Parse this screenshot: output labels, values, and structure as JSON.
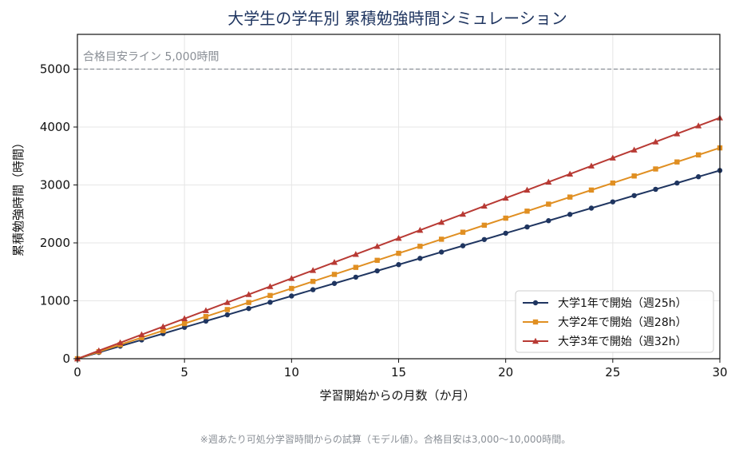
{
  "chart_data": {
    "type": "line",
    "title": "大学生の学年別 累積勉強時間シミュレーション",
    "xlabel": "学習開始からの月数（か月）",
    "ylabel": "累積勉強時間（時間）",
    "xlim": [
      0,
      30
    ],
    "ylim": [
      0,
      5600
    ],
    "x_ticks": [
      0,
      5,
      10,
      15,
      20,
      25,
      30
    ],
    "y_ticks": [
      0,
      1000,
      2000,
      3000,
      4000,
      5000
    ],
    "grid": true,
    "legend_position": "bottom-right",
    "reference_line": {
      "y": 5000,
      "label": "合格目安ライン 5,000時間",
      "color": "#8a8f96"
    },
    "series": [
      {
        "name": "大学1年で開始（週25h）",
        "marker": "circle",
        "color": "#1f3560",
        "monthly_increment": 108.3,
        "x": [
          0,
          1,
          2,
          3,
          4,
          5,
          6,
          7,
          8,
          9,
          10,
          11,
          12,
          13,
          14,
          15,
          16,
          17,
          18,
          19,
          20,
          21,
          22,
          23,
          24,
          25,
          26,
          27,
          28,
          29,
          30
        ],
        "values": [
          0,
          108,
          217,
          325,
          433,
          542,
          650,
          758,
          867,
          975,
          1083,
          1192,
          1300,
          1408,
          1517,
          1625,
          1733,
          1842,
          1950,
          2058,
          2167,
          2275,
          2383,
          2492,
          2600,
          2708,
          2817,
          2925,
          3033,
          3142,
          3250
        ]
      },
      {
        "name": "大学2年で開始（週28h）",
        "marker": "square",
        "color": "#e08f22",
        "monthly_increment": 121.3,
        "x": [
          0,
          1,
          2,
          3,
          4,
          5,
          6,
          7,
          8,
          9,
          10,
          11,
          12,
          13,
          14,
          15,
          16,
          17,
          18,
          19,
          20,
          21,
          22,
          23,
          24,
          25,
          26,
          27,
          28,
          29,
          30
        ],
        "values": [
          0,
          121,
          243,
          364,
          485,
          607,
          728,
          849,
          971,
          1092,
          1213,
          1335,
          1456,
          1577,
          1699,
          1820,
          1941,
          2063,
          2184,
          2305,
          2427,
          2548,
          2669,
          2791,
          2912,
          3033,
          3155,
          3276,
          3397,
          3519,
          3640
        ]
      },
      {
        "name": "大学3年で開始（週32h）",
        "marker": "triangle",
        "color": "#b83a34",
        "monthly_increment": 138.7,
        "x": [
          0,
          1,
          2,
          3,
          4,
          5,
          6,
          7,
          8,
          9,
          10,
          11,
          12,
          13,
          14,
          15,
          16,
          17,
          18,
          19,
          20,
          21,
          22,
          23,
          24,
          25,
          26,
          27,
          28,
          29,
          30
        ],
        "values": [
          0,
          139,
          277,
          416,
          555,
          693,
          832,
          971,
          1109,
          1248,
          1387,
          1525,
          1664,
          1803,
          1941,
          2080,
          2219,
          2357,
          2496,
          2635,
          2773,
          2912,
          3051,
          3189,
          3328,
          3467,
          3605,
          3744,
          3883,
          4021,
          4160
        ]
      }
    ],
    "footnote": "※週あたり可処分学習時間からの試算（モデル値）。合格目安は3,000〜10,000時間。"
  }
}
